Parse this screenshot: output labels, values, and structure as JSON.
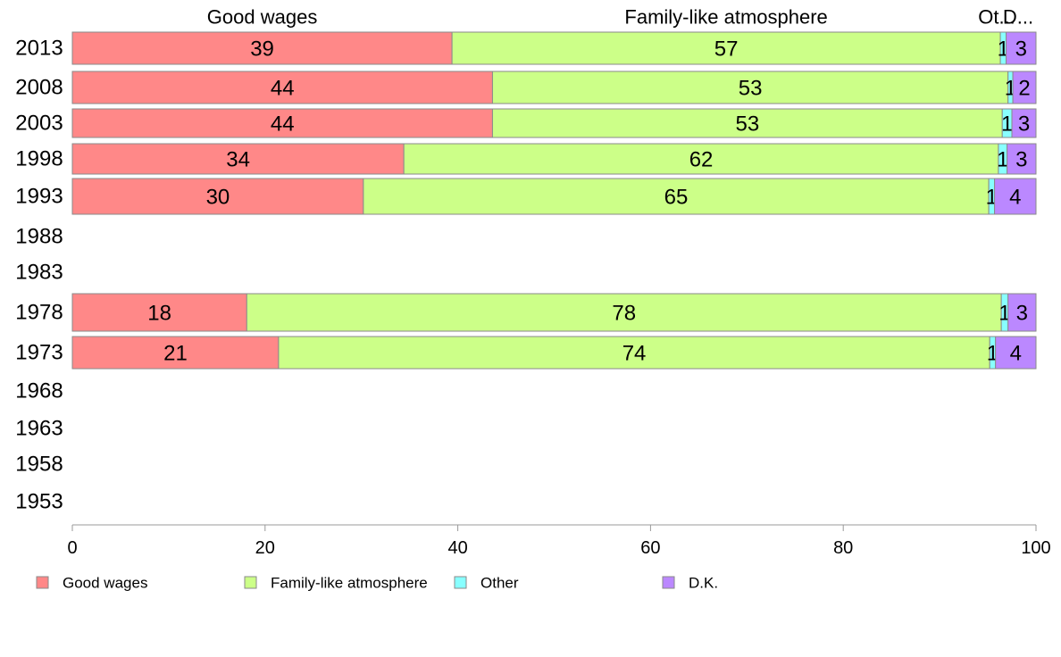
{
  "chart_data": {
    "type": "bar",
    "orientation": "horizontal",
    "stacked": true,
    "categories": [
      "2013",
      "2008",
      "2003",
      "1998",
      "1993",
      "1988",
      "1983",
      "1978",
      "1973",
      "1968",
      "1963",
      "1958",
      "1953"
    ],
    "series": [
      {
        "name": "Good wages",
        "color": "#ff8888",
        "values": [
          39.4,
          43.6,
          43.6,
          34.4,
          30.2,
          null,
          null,
          18.1,
          21.4,
          null,
          null,
          null,
          null
        ],
        "labels": [
          "39",
          "44",
          "44",
          "34",
          "30",
          "",
          "",
          "18",
          "21",
          "",
          "",
          "",
          ""
        ]
      },
      {
        "name": "Family-like atmosphere",
        "color": "#ccff88",
        "values": [
          56.9,
          53.5,
          52.9,
          61.7,
          64.9,
          null,
          null,
          78.3,
          73.8,
          null,
          null,
          null,
          null
        ],
        "labels": [
          "57",
          "53",
          "53",
          "62",
          "65",
          "",
          "",
          "78",
          "74",
          "",
          "",
          "",
          ""
        ]
      },
      {
        "name": "Other",
        "color": "#88ffff",
        "values": [
          0.6,
          0.5,
          1.0,
          0.9,
          0.6,
          null,
          null,
          0.7,
          0.6,
          null,
          null,
          null,
          null
        ],
        "labels": [
          "1",
          "1",
          "1",
          "1",
          "1",
          "",
          "",
          "1",
          "1",
          "",
          "",
          "",
          ""
        ]
      },
      {
        "name": "D.K.",
        "color": "#bb88ff",
        "values": [
          3.1,
          2.4,
          2.5,
          3.0,
          4.3,
          null,
          null,
          2.9,
          4.2,
          null,
          null,
          null,
          null
        ],
        "labels": [
          "3",
          "2",
          "3",
          "3",
          "4",
          "",
          "",
          "3",
          "4",
          "",
          "",
          "",
          ""
        ]
      }
    ],
    "header_labels": [
      "Good wages",
      "Family-like atmosphere",
      "Ot...",
      "D..."
    ],
    "xlim": [
      0,
      100
    ],
    "xticks": [
      "0",
      "20",
      "40",
      "60",
      "80",
      "100"
    ],
    "legend_position": "bottom",
    "grid": false
  }
}
